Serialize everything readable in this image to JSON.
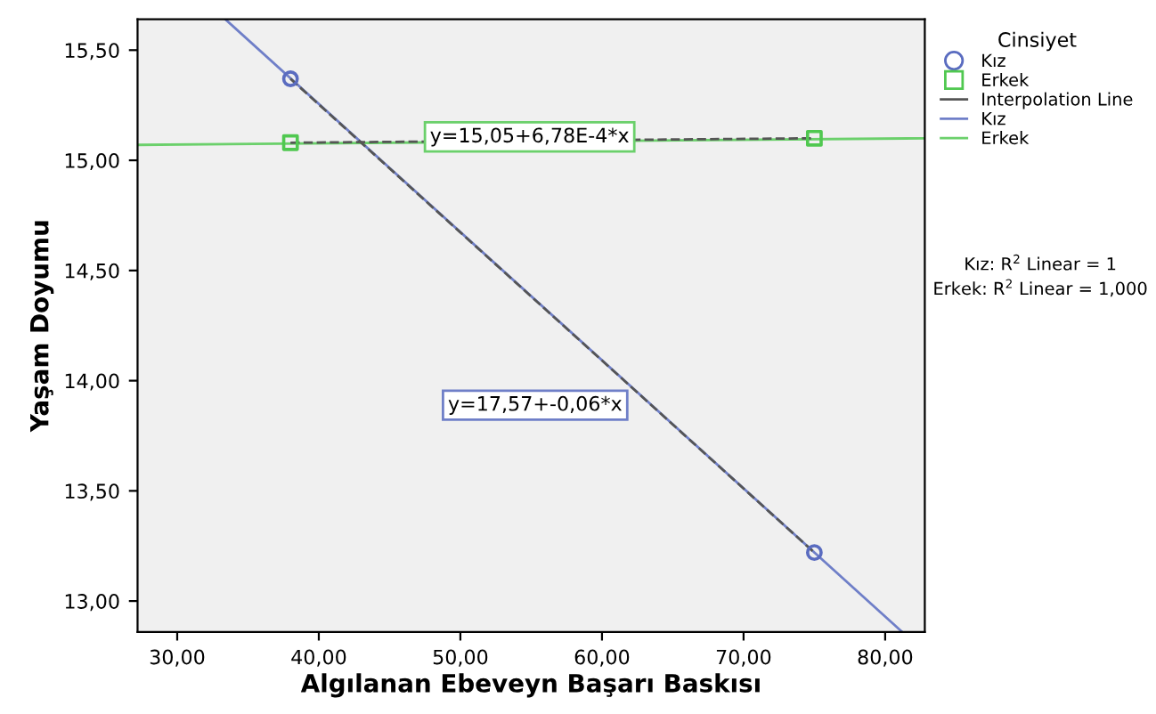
{
  "chart_data": {
    "type": "scatter",
    "xlabel": "Algılanan Ebeveyn Başarı Baskısı",
    "ylabel": "Yaşam Doyumu",
    "legend_title": "Cinsiyet",
    "legend": "right",
    "grid": false,
    "xlim": [
      27.2,
      82.8
    ],
    "ylim": [
      12.86,
      15.64
    ],
    "xticks": [
      {
        "value": 30,
        "label": "30,00"
      },
      {
        "value": 40,
        "label": "40,00"
      },
      {
        "value": 50,
        "label": "50,00"
      },
      {
        "value": 60,
        "label": "60,00"
      },
      {
        "value": 70,
        "label": "70,00"
      },
      {
        "value": 80,
        "label": "80,00"
      }
    ],
    "yticks": [
      {
        "value": 13.0,
        "label": "13,00"
      },
      {
        "value": 13.5,
        "label": "13,50"
      },
      {
        "value": 14.0,
        "label": "14,00"
      },
      {
        "value": 14.5,
        "label": "14,50"
      },
      {
        "value": 15.0,
        "label": "15,00"
      },
      {
        "value": 15.5,
        "label": "15,50"
      }
    ],
    "series": [
      {
        "name": "Kız",
        "marker": "circle",
        "color": "#5a6cc0",
        "x": [
          38,
          75
        ],
        "values": [
          15.37,
          13.22
        ]
      },
      {
        "name": "Erkek",
        "marker": "square",
        "color": "#50c850",
        "x": [
          38,
          75
        ],
        "values": [
          15.08,
          15.1
        ]
      },
      {
        "name": "Interpolation Line",
        "type": "line",
        "line_style": "dashed",
        "color": "#555555",
        "x": [
          38,
          75
        ],
        "values": [
          15.37,
          13.22
        ]
      },
      {
        "type": "line",
        "line_style": "dashed",
        "color": "#555555",
        "x": [
          38,
          75
        ],
        "values": [
          15.08,
          15.1
        ]
      },
      {
        "name": "Kız",
        "type": "line",
        "line_style": "solid",
        "color": "#6f7fc8",
        "x": [
          33.4,
          81.2
        ],
        "values": [
          15.64,
          12.86
        ]
      },
      {
        "name": "Erkek",
        "type": "line",
        "line_style": "solid",
        "color": "#6bd06b",
        "x": [
          27.2,
          82.8
        ],
        "values": [
          15.07,
          15.1
        ]
      }
    ],
    "annotations": [
      "y=17,57+-0,06*x",
      "y=15,05+6,78E-4*x",
      "Kız: R$^{2}$ Linear = 1",
      "Erkek: R$^{2}$ Linear = 1,000"
    ]
  }
}
